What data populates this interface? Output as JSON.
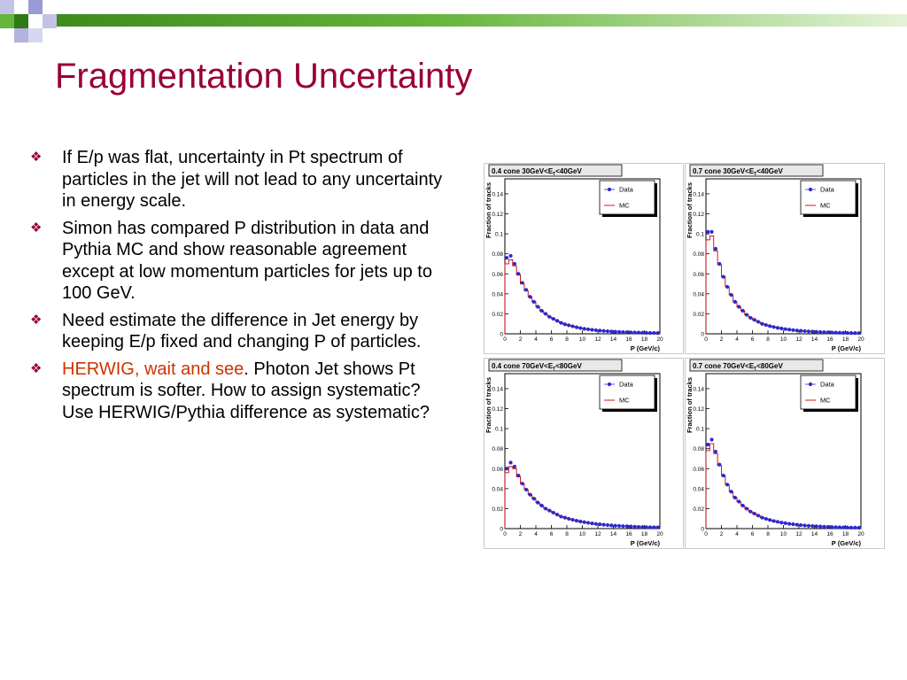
{
  "slide": {
    "title": "Fragmentation Uncertainty",
    "bullet_icon": "diamond-bullet-icon",
    "bullets": [
      {
        "text": "If E/p was flat, uncertainty in Pt spectrum of particles in the jet will not lead to any uncertainty in energy scale."
      },
      {
        "text": "Simon has compared P distribution in data and Pythia MC and show reasonable agreement except at low momentum particles  for jets up to 100 GeV."
      },
      {
        "text": "Need estimate the difference in Jet energy by keeping E/p fixed and changing P of particles."
      },
      {
        "highlight": "HERWIG, wait and see",
        "text": ". Photon Jet shows Pt spectrum is softer. How to assign systematic? Use HERWIG/Pythia difference as systematic?"
      }
    ]
  },
  "colors": {
    "title": "#990033",
    "bullet": "#990033",
    "highlight": "#cc3300",
    "deco_green": "#66b53c",
    "deco_green_dark": "#3d8a1d",
    "deco_lavender": "#c3c3e6",
    "data_marker": "#2a2ad0",
    "mc_line": "#cc0000"
  },
  "chart_data": [
    {
      "type": "line",
      "title_prefix": "0.4 cone 30GeV<E",
      "title_sub": "T",
      "title_suffix": "<40GeV",
      "xlabel": "P (GeV/c)",
      "ylabel": "Fraction of tracks",
      "xlim": [
        0,
        20
      ],
      "ylim": [
        0,
        0.155
      ],
      "xticks": [
        0,
        2,
        4,
        6,
        8,
        10,
        12,
        14,
        16,
        18,
        20
      ],
      "yticks": [
        0,
        0.02,
        0.04,
        0.06,
        0.08,
        0.1,
        0.12,
        0.14
      ],
      "legend": "top-right",
      "series": [
        {
          "name": "Data",
          "x": [
            0.25,
            0.75,
            1.25,
            1.75,
            2.25,
            2.75,
            3.25,
            3.75,
            4.25,
            4.75,
            5.25,
            5.75,
            6.25,
            6.75,
            7.25,
            7.75,
            8.25,
            8.75,
            9.25,
            9.75,
            10.25,
            10.75,
            11.25,
            11.75,
            12.25,
            12.75,
            13.25,
            13.75,
            14.25,
            14.75,
            15.25,
            15.75,
            16.25,
            16.75,
            17.25,
            17.75,
            18.25,
            18.75,
            19.25,
            19.75
          ],
          "y": [
            0.076,
            0.078,
            0.07,
            0.06,
            0.051,
            0.044,
            0.037,
            0.032,
            0.027,
            0.023,
            0.02,
            0.017,
            0.015,
            0.013,
            0.011,
            0.0095,
            0.0085,
            0.0075,
            0.0065,
            0.0057,
            0.005,
            0.0045,
            0.004,
            0.0036,
            0.0032,
            0.0029,
            0.0026,
            0.0023,
            0.0021,
            0.0019,
            0.0017,
            0.0016,
            0.0014,
            0.0013,
            0.0012,
            0.0011,
            0.001,
            0.0009,
            0.0009,
            0.0008
          ]
        },
        {
          "name": "MC",
          "x": [
            0.25,
            0.75,
            1.25,
            1.75,
            2.25,
            2.75,
            3.25,
            3.75,
            4.25,
            4.75,
            5.25,
            5.75,
            6.25,
            6.75,
            7.25,
            7.75,
            8.25,
            8.75,
            9.25,
            9.75,
            10.25,
            10.75,
            11.25,
            11.75,
            12.25,
            12.75,
            13.25,
            13.75,
            14.25,
            14.75,
            15.25,
            15.75,
            16.25,
            16.75,
            17.25,
            17.75,
            18.25,
            18.75,
            19.25,
            19.75
          ],
          "y": [
            0.07,
            0.074,
            0.068,
            0.059,
            0.05,
            0.043,
            0.037,
            0.032,
            0.027,
            0.023,
            0.02,
            0.017,
            0.015,
            0.013,
            0.011,
            0.0095,
            0.0085,
            0.0075,
            0.0065,
            0.0057,
            0.005,
            0.0045,
            0.004,
            0.0036,
            0.0032,
            0.0029,
            0.0026,
            0.0023,
            0.0021,
            0.0019,
            0.0017,
            0.0016,
            0.0014,
            0.0013,
            0.0012,
            0.0011,
            0.001,
            0.0009,
            0.0009,
            0.0008
          ]
        }
      ]
    },
    {
      "type": "line",
      "title_prefix": "0.7 cone 30GeV<E",
      "title_sub": "T",
      "title_suffix": "<40GeV",
      "xlabel": "P (GeV/c)",
      "ylabel": "Fraction of tracks",
      "xlim": [
        0,
        20
      ],
      "ylim": [
        0,
        0.155
      ],
      "xticks": [
        0,
        2,
        4,
        6,
        8,
        10,
        12,
        14,
        16,
        18,
        20
      ],
      "yticks": [
        0,
        0.02,
        0.04,
        0.06,
        0.08,
        0.1,
        0.12,
        0.14
      ],
      "legend": "top-right",
      "series": [
        {
          "name": "Data",
          "x": [
            0.25,
            0.75,
            1.25,
            1.75,
            2.25,
            2.75,
            3.25,
            3.75,
            4.25,
            4.75,
            5.25,
            5.75,
            6.25,
            6.75,
            7.25,
            7.75,
            8.25,
            8.75,
            9.25,
            9.75,
            10.25,
            10.75,
            11.25,
            11.75,
            12.25,
            12.75,
            13.25,
            13.75,
            14.25,
            14.75,
            15.25,
            15.75,
            16.25,
            16.75,
            17.25,
            17.75,
            18.25,
            18.75,
            19.25,
            19.75
          ],
          "y": [
            0.102,
            0.102,
            0.085,
            0.07,
            0.057,
            0.047,
            0.039,
            0.032,
            0.027,
            0.023,
            0.019,
            0.016,
            0.014,
            0.012,
            0.01,
            0.0088,
            0.0077,
            0.0068,
            0.006,
            0.0053,
            0.0047,
            0.0042,
            0.0037,
            0.0033,
            0.003,
            0.0027,
            0.0024,
            0.0022,
            0.002,
            0.0018,
            0.0016,
            0.0015,
            0.0013,
            0.0012,
            0.0011,
            0.001,
            0.0009,
            0.0008,
            0.0008,
            0.0007
          ]
        },
        {
          "name": "MC",
          "x": [
            0.25,
            0.75,
            1.25,
            1.75,
            2.25,
            2.75,
            3.25,
            3.75,
            4.25,
            4.75,
            5.25,
            5.75,
            6.25,
            6.75,
            7.25,
            7.75,
            8.25,
            8.75,
            9.25,
            9.75,
            10.25,
            10.75,
            11.25,
            11.75,
            12.25,
            12.75,
            13.25,
            13.75,
            14.25,
            14.75,
            15.25,
            15.75,
            16.25,
            16.75,
            17.25,
            17.75,
            18.25,
            18.75,
            19.25,
            19.75
          ],
          "y": [
            0.094,
            0.098,
            0.083,
            0.069,
            0.057,
            0.047,
            0.039,
            0.032,
            0.027,
            0.023,
            0.019,
            0.016,
            0.014,
            0.012,
            0.01,
            0.0088,
            0.0077,
            0.0068,
            0.006,
            0.0053,
            0.0047,
            0.0042,
            0.0037,
            0.0033,
            0.003,
            0.0027,
            0.0024,
            0.0022,
            0.002,
            0.0018,
            0.0016,
            0.0015,
            0.0013,
            0.0012,
            0.0011,
            0.001,
            0.0009,
            0.0008,
            0.0008,
            0.0007
          ]
        }
      ]
    },
    {
      "type": "line",
      "title_prefix": "0.4 cone 70GeV<E",
      "title_sub": "T",
      "title_suffix": "<80GeV",
      "xlabel": "P (GeV/c)",
      "ylabel": "Fraction of tracks",
      "xlim": [
        0,
        20
      ],
      "ylim": [
        0,
        0.155
      ],
      "xticks": [
        0,
        2,
        4,
        6,
        8,
        10,
        12,
        14,
        16,
        18,
        20
      ],
      "yticks": [
        0,
        0.02,
        0.04,
        0.06,
        0.08,
        0.1,
        0.12,
        0.14
      ],
      "legend": "top-right",
      "series": [
        {
          "name": "Data",
          "x": [
            0.25,
            0.75,
            1.25,
            1.75,
            2.25,
            2.75,
            3.25,
            3.75,
            4.25,
            4.75,
            5.25,
            5.75,
            6.25,
            6.75,
            7.25,
            7.75,
            8.25,
            8.75,
            9.25,
            9.75,
            10.25,
            10.75,
            11.25,
            11.75,
            12.25,
            12.75,
            13.25,
            13.75,
            14.25,
            14.75,
            15.25,
            15.75,
            16.25,
            16.75,
            17.25,
            17.75,
            18.25,
            18.75,
            19.25,
            19.75
          ],
          "y": [
            0.06,
            0.066,
            0.062,
            0.053,
            0.045,
            0.039,
            0.034,
            0.03,
            0.026,
            0.023,
            0.02,
            0.018,
            0.016,
            0.014,
            0.012,
            0.011,
            0.0098,
            0.0088,
            0.0079,
            0.0071,
            0.0064,
            0.0058,
            0.0052,
            0.0047,
            0.0043,
            0.0039,
            0.0035,
            0.0032,
            0.0029,
            0.0027,
            0.0025,
            0.0023,
            0.0021,
            0.0019,
            0.0017,
            0.0016,
            0.0015,
            0.0014,
            0.0013,
            0.0012
          ]
        },
        {
          "name": "MC",
          "x": [
            0.25,
            0.75,
            1.25,
            1.75,
            2.25,
            2.75,
            3.25,
            3.75,
            4.25,
            4.75,
            5.25,
            5.75,
            6.25,
            6.75,
            7.25,
            7.75,
            8.25,
            8.75,
            9.25,
            9.75,
            10.25,
            10.75,
            11.25,
            11.75,
            12.25,
            12.75,
            13.25,
            13.75,
            14.25,
            14.75,
            15.25,
            15.75,
            16.25,
            16.75,
            17.25,
            17.75,
            18.25,
            18.75,
            19.25,
            19.75
          ],
          "y": [
            0.056,
            0.062,
            0.06,
            0.052,
            0.045,
            0.039,
            0.034,
            0.03,
            0.026,
            0.023,
            0.02,
            0.018,
            0.016,
            0.014,
            0.012,
            0.011,
            0.0098,
            0.0088,
            0.0079,
            0.0071,
            0.0064,
            0.0058,
            0.0052,
            0.0047,
            0.0043,
            0.0039,
            0.0035,
            0.0032,
            0.0029,
            0.0027,
            0.0025,
            0.0023,
            0.0021,
            0.0019,
            0.0017,
            0.0016,
            0.0015,
            0.0014,
            0.0013,
            0.0012
          ]
        }
      ]
    },
    {
      "type": "line",
      "title_prefix": "0.7 cone 70GeV<E",
      "title_sub": "T",
      "title_suffix": "<80GeV",
      "xlabel": "P (GeV/c)",
      "ylabel": "Fraction of tracks",
      "xlim": [
        0,
        20
      ],
      "ylim": [
        0,
        0.155
      ],
      "xticks": [
        0,
        2,
        4,
        6,
        8,
        10,
        12,
        14,
        16,
        18,
        20
      ],
      "yticks": [
        0,
        0.02,
        0.04,
        0.06,
        0.08,
        0.1,
        0.12,
        0.14
      ],
      "legend": "top-right",
      "series": [
        {
          "name": "Data",
          "x": [
            0.25,
            0.75,
            1.25,
            1.75,
            2.25,
            2.75,
            3.25,
            3.75,
            4.25,
            4.75,
            5.25,
            5.75,
            6.25,
            6.75,
            7.25,
            7.75,
            8.25,
            8.75,
            9.25,
            9.75,
            10.25,
            10.75,
            11.25,
            11.75,
            12.25,
            12.75,
            13.25,
            13.75,
            14.25,
            14.75,
            15.25,
            15.75,
            16.25,
            16.75,
            17.25,
            17.75,
            18.25,
            18.75,
            19.25,
            19.75
          ],
          "y": [
            0.084,
            0.089,
            0.077,
            0.064,
            0.053,
            0.044,
            0.037,
            0.031,
            0.027,
            0.023,
            0.02,
            0.017,
            0.015,
            0.013,
            0.011,
            0.0098,
            0.0086,
            0.0076,
            0.0068,
            0.006,
            0.0054,
            0.0048,
            0.0043,
            0.0039,
            0.0035,
            0.0031,
            0.0028,
            0.0026,
            0.0023,
            0.0021,
            0.0019,
            0.0017,
            0.0016,
            0.0015,
            0.0013,
            0.0012,
            0.0011,
            0.001,
            0.001,
            0.0009
          ]
        },
        {
          "name": "MC",
          "x": [
            0.25,
            0.75,
            1.25,
            1.75,
            2.25,
            2.75,
            3.25,
            3.75,
            4.25,
            4.75,
            5.25,
            5.75,
            6.25,
            6.75,
            7.25,
            7.75,
            8.25,
            8.75,
            9.25,
            9.75,
            10.25,
            10.75,
            11.25,
            11.75,
            12.25,
            12.75,
            13.25,
            13.75,
            14.25,
            14.75,
            15.25,
            15.75,
            16.25,
            16.75,
            17.25,
            17.75,
            18.25,
            18.75,
            19.25,
            19.75
          ],
          "y": [
            0.078,
            0.085,
            0.075,
            0.063,
            0.053,
            0.044,
            0.037,
            0.031,
            0.027,
            0.023,
            0.02,
            0.017,
            0.015,
            0.013,
            0.011,
            0.0098,
            0.0086,
            0.0076,
            0.0068,
            0.006,
            0.0054,
            0.0048,
            0.0043,
            0.0039,
            0.0035,
            0.0031,
            0.0028,
            0.0026,
            0.0023,
            0.0021,
            0.0019,
            0.0017,
            0.0016,
            0.0015,
            0.0013,
            0.0012,
            0.0011,
            0.001,
            0.001,
            0.0009
          ]
        }
      ]
    }
  ]
}
